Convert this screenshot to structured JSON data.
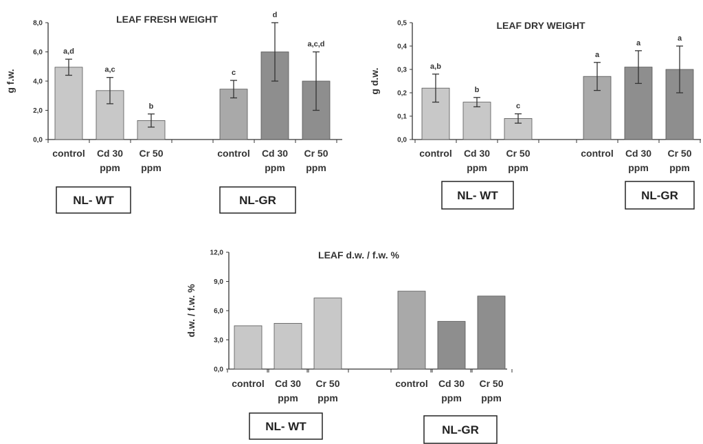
{
  "colors": {
    "wt_bar": "#c8c8c8",
    "gr_bar_control": "#a9a9a9",
    "gr_bar_metal": "#8e8e8e",
    "text": "#333333",
    "axis": "#333333"
  },
  "chart_data": [
    {
      "id": "fresh",
      "type": "bar",
      "title": "LEAF FRESH WEIGHT",
      "ylabel": "g f.w.",
      "ylim": [
        0,
        8
      ],
      "yticks": [
        "0,0",
        "2,0",
        "4,0",
        "6,0",
        "8,0"
      ],
      "error_bars": true,
      "groups": [
        {
          "name": "NL- WT",
          "categories": [
            "control",
            "Cd 30 ppm",
            "Cr 50 ppm"
          ],
          "values": [
            4.95,
            3.35,
            1.3
          ],
          "errors": [
            0.55,
            0.9,
            0.45
          ],
          "significance": [
            "a,d",
            "a,c",
            "b"
          ]
        },
        {
          "name": "NL-GR",
          "categories": [
            "control",
            "Cd 30 ppm",
            "Cr 50 ppm"
          ],
          "values": [
            3.45,
            6.0,
            4.0
          ],
          "errors": [
            0.6,
            2.0,
            2.0
          ],
          "significance": [
            "c",
            "d",
            "a,c,d"
          ]
        }
      ]
    },
    {
      "id": "dry",
      "type": "bar",
      "title": "LEAF DRY WEIGHT",
      "ylabel": "g d.w.",
      "ylim": [
        0,
        0.5
      ],
      "yticks": [
        "0,0",
        "0,1",
        "0,2",
        "0,3",
        "0,4",
        "0,5"
      ],
      "error_bars": true,
      "groups": [
        {
          "name": "NL- WT",
          "categories": [
            "control",
            "Cd 30 ppm",
            "Cr 50 ppm"
          ],
          "values": [
            0.22,
            0.16,
            0.09
          ],
          "errors": [
            0.06,
            0.02,
            0.02
          ],
          "significance": [
            "a,b",
            "b",
            "c"
          ]
        },
        {
          "name": "NL-GR",
          "categories": [
            "control",
            "Cd 30 ppm",
            "Cr 50 ppm"
          ],
          "values": [
            0.27,
            0.31,
            0.3
          ],
          "errors": [
            0.06,
            0.07,
            0.1
          ],
          "significance": [
            "a",
            "a",
            "a"
          ]
        }
      ]
    },
    {
      "id": "ratio",
      "type": "bar",
      "title": "LEAF d.w. / f.w. %",
      "ylabel": "d.w. / f.w. %",
      "ylim": [
        0,
        12
      ],
      "yticks": [
        "0,0",
        "3,0",
        "6,0",
        "9,0",
        "12,0"
      ],
      "error_bars": false,
      "groups": [
        {
          "name": "NL- WT",
          "categories": [
            "control",
            "Cd 30 ppm",
            "Cr 50 ppm"
          ],
          "values": [
            4.45,
            4.7,
            7.3
          ]
        },
        {
          "name": "NL-GR",
          "categories": [
            "control",
            "Cd 30 ppm",
            "Cr 50 ppm"
          ],
          "values": [
            8.0,
            4.9,
            7.5
          ]
        }
      ]
    }
  ]
}
